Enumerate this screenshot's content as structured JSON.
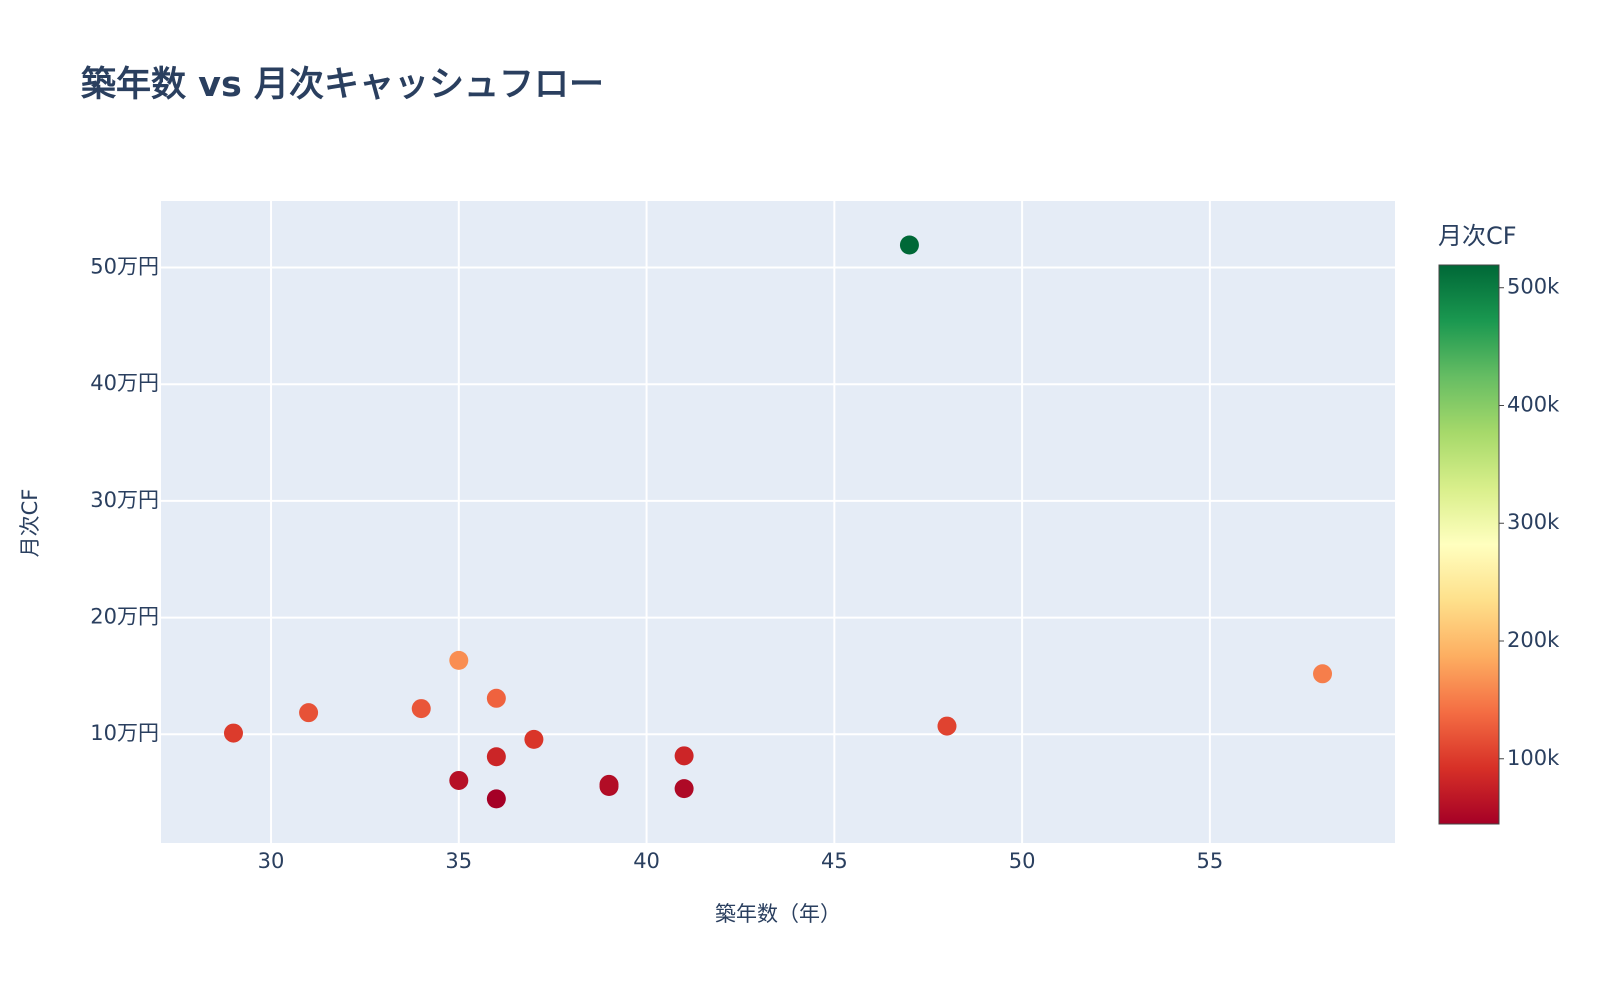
{
  "chart_data": {
    "type": "scatter",
    "title": "築年数 vs 月次キャッシュフロー",
    "x_label": "築年数（年）",
    "y_label": "月次CF",
    "x": [
      29,
      31,
      34,
      35,
      35,
      36,
      36,
      36,
      37,
      39,
      39,
      41,
      41,
      47,
      48,
      58
    ],
    "values": [
      101000,
      118500,
      122000,
      163300,
      60400,
      130800,
      80700,
      44600,
      95600,
      55200,
      57000,
      81500,
      53400,
      519300,
      107000,
      151800
    ],
    "xlim": [
      27.07,
      59.93
    ],
    "xticks": [
      30,
      35,
      40,
      45,
      50,
      55
    ],
    "ylim": [
      6800,
      557000
    ],
    "yticks": [
      {
        "value": 100000,
        "label": "10万円"
      },
      {
        "value": 200000,
        "label": "20万円"
      },
      {
        "value": 300000,
        "label": "30万円"
      },
      {
        "value": 400000,
        "label": "40万円"
      },
      {
        "value": 500000,
        "label": "50万円"
      }
    ],
    "grid": true,
    "colorbar_title": "月次CF",
    "clim": [
      44600,
      519300
    ],
    "colorbar_ticks": [
      {
        "value": 100000,
        "label": "100k"
      },
      {
        "value": 200000,
        "label": "200k"
      },
      {
        "value": 300000,
        "label": "300k"
      },
      {
        "value": 400000,
        "label": "400k"
      },
      {
        "value": 500000,
        "label": "500k"
      }
    ],
    "colorscale": [
      "#a50026",
      "#d73027",
      "#f46d43",
      "#fdae61",
      "#fee08b",
      "#ffffbf",
      "#d9ef8b",
      "#a6d96a",
      "#66bd63",
      "#1a9850",
      "#006837"
    ]
  }
}
